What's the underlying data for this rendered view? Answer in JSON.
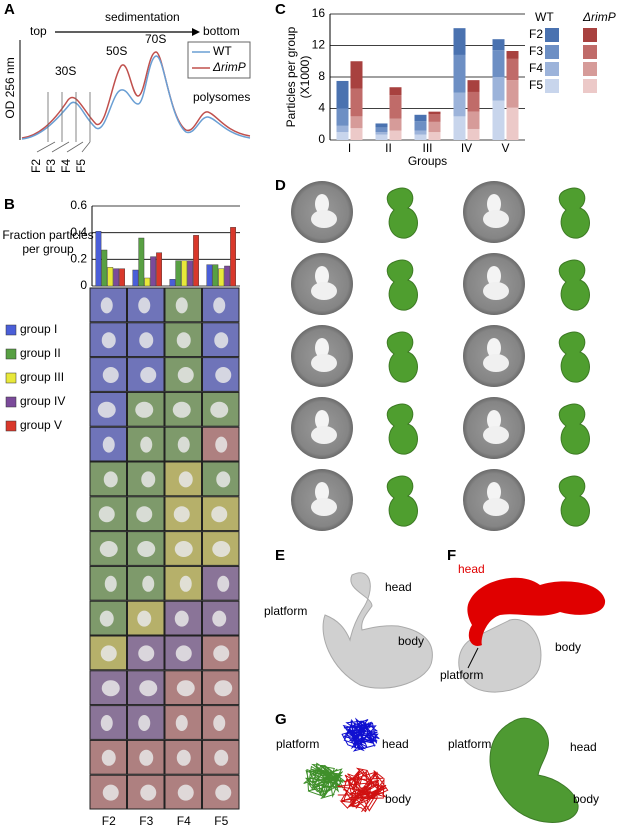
{
  "panel_labels": [
    "A",
    "B",
    "C",
    "D",
    "E",
    "F",
    "G"
  ],
  "panel_a": {
    "top": "top",
    "direction": "sedimentation",
    "bottom": "bottom",
    "y_label": "OD 256 nm",
    "peaks": [
      "30S",
      "50S",
      "70S",
      "polysomes"
    ],
    "legend": [
      {
        "name": "WT",
        "color": "#6a9fd4"
      },
      {
        "name": "ΔrimP",
        "color": "#c0504d"
      }
    ],
    "fractions": [
      "F2",
      "F3",
      "F4",
      "F5"
    ]
  },
  "panel_e": {
    "labels": [
      "platform",
      "head",
      "body"
    ]
  },
  "panel_f": {
    "labels": [
      "head",
      "platform",
      "body"
    ]
  },
  "panel_g": {
    "ribbon_labels": [
      "platform",
      "head",
      "body"
    ],
    "surface_labels": [
      "platform",
      "head",
      "body"
    ]
  },
  "chart_data": [
    {
      "type": "bar",
      "y_label": [
        "Fraction particles",
        "per group"
      ],
      "categories": [
        "F2",
        "F3",
        "F4",
        "F5"
      ],
      "series": [
        {
          "name": "group I",
          "color": "#4a5ed8",
          "values": [
            0.41,
            0.12,
            0.05,
            0.16
          ]
        },
        {
          "name": "group II",
          "color": "#58a043",
          "values": [
            0.27,
            0.36,
            0.19,
            0.16
          ]
        },
        {
          "name": "group III",
          "color": "#e8e83a",
          "values": [
            0.14,
            0.06,
            0.19,
            0.13
          ]
        },
        {
          "name": "group IV",
          "color": "#7b4a9a",
          "values": [
            0.13,
            0.22,
            0.19,
            0.15
          ]
        },
        {
          "name": "group V",
          "color": "#d9382b",
          "values": [
            0.13,
            0.25,
            0.38,
            0.44
          ]
        }
      ],
      "ylim": [
        0,
        0.6
      ],
      "yticks": [
        0,
        0.2,
        0.4,
        0.6
      ],
      "grid": true
    },
    {
      "type": "stacked_bar",
      "y_label": [
        "Particles per group",
        "(X1000)"
      ],
      "x_label": "Groups",
      "categories": [
        "I",
        "II",
        "III",
        "IV",
        "V"
      ],
      "segments": [
        "F2",
        "F3",
        "F4",
        "F5"
      ],
      "series": [
        {
          "name": "WT",
          "colors": [
            "#4a72b0",
            "#6d8fc4",
            "#9cb3da",
            "#c8d5ec"
          ],
          "values": [
            [
              3.5,
              2.2,
              0.8,
              1.0
            ],
            [
              0.5,
              0.6,
              0.3,
              0.7
            ],
            [
              0.8,
              1.2,
              0.5,
              0.7
            ],
            [
              3.4,
              4.8,
              3.0,
              3.0
            ],
            [
              1.4,
              3.4,
              3.0,
              5.0
            ]
          ]
        },
        {
          "name": "ΔrimP",
          "colors": [
            "#a8413f",
            "#c06b69",
            "#d69b99",
            "#ecc9c8"
          ],
          "values": [
            [
              3.5,
              3.5,
              1.5,
              1.5
            ],
            [
              1.0,
              3.0,
              1.5,
              1.2
            ],
            [
              0.3,
              1.0,
              1.3,
              1.0
            ],
            [
              1.5,
              2.5,
              2.2,
              1.4
            ],
            [
              1.0,
              2.7,
              3.5,
              4.1
            ]
          ]
        }
      ],
      "ylim": [
        0,
        16
      ],
      "yticks": [
        0,
        4,
        8,
        12,
        16
      ],
      "grid": true
    }
  ]
}
